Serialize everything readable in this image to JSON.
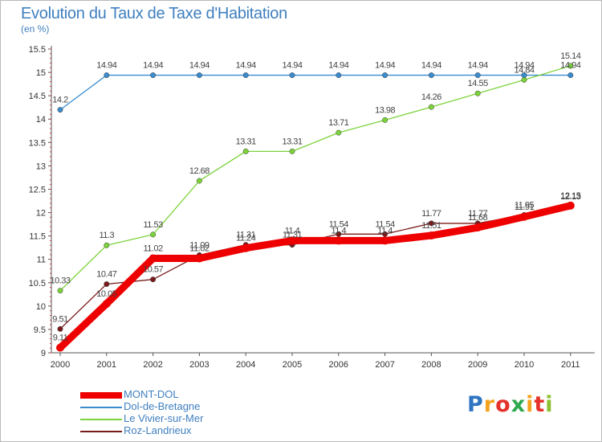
{
  "chart_data": {
    "type": "line",
    "title": "Evolution du Taux de Taxe d'Habitation",
    "subtitle": "(en %)",
    "x": [
      "2000",
      "2001",
      "2002",
      "2003",
      "2004",
      "2005",
      "2006",
      "2007",
      "2008",
      "2009",
      "2010",
      "2011"
    ],
    "ylim": [
      9,
      15.5
    ],
    "yticks": [
      "9",
      "9.5",
      "10",
      "10.5",
      "11",
      "11.5",
      "12",
      "12.5",
      "13",
      "13.5",
      "14",
      "14.5",
      "15",
      "15.5"
    ],
    "grid": false,
    "legend_position": "bottom-left",
    "series": [
      {
        "name": "MONT-DOL",
        "color": "#ee0000",
        "values": [
          9.11,
          10.05,
          11.02,
          11.02,
          11.24,
          11.4,
          11.4,
          11.4,
          11.51,
          11.68,
          11.91,
          12.15
        ],
        "labels": [
          "9.11",
          "10.05",
          "11.02",
          "11.02",
          "11.24",
          "11.4",
          "11.4",
          "11.4",
          "11.51",
          "11.68",
          "11.91",
          "12.15"
        ]
      },
      {
        "name": "Dol-de-Bretagne",
        "color": "#3a8ccf",
        "values": [
          14.2,
          14.94,
          14.94,
          14.94,
          14.94,
          14.94,
          14.94,
          14.94,
          14.94,
          14.94,
          14.94,
          14.94
        ],
        "labels": [
          "14.2",
          "14.94",
          "14.94",
          "14.94",
          "14.94",
          "14.94",
          "14.94",
          "14.94",
          "14.94",
          "14.94",
          "14.94",
          "14.94"
        ]
      },
      {
        "name": "Le Vivier-sur-Mer",
        "color": "#7cd33a",
        "values": [
          10.33,
          11.3,
          11.53,
          12.68,
          13.31,
          13.31,
          13.71,
          13.98,
          14.26,
          14.55,
          14.84,
          15.14
        ],
        "labels": [
          "10.33",
          "11.3",
          "11.53",
          "12.68",
          "13.31",
          "13.31",
          "13.71",
          "13.98",
          "14.26",
          "14.55",
          "14.84",
          "15.14"
        ]
      },
      {
        "name": "Roz-Landrieux",
        "color": "#7a1a1a",
        "values": [
          9.51,
          10.47,
          10.57,
          11.09,
          11.31,
          11.31,
          11.54,
          11.54,
          11.77,
          11.77,
          11.95,
          12.13
        ],
        "labels": [
          "9.51",
          "10.47",
          "10.57",
          "11.09",
          "11.31",
          "11.31",
          "11.54",
          "11.54",
          "11.77",
          "11.77",
          "11.95",
          "12.13"
        ]
      }
    ]
  },
  "logo": {
    "letters": [
      "P",
      "r",
      "o",
      "x",
      "i",
      "t",
      "i"
    ],
    "colors": [
      "#2f74c0",
      "#f5a21e",
      "#e4322b",
      "#2fa84f",
      "#f5a21e",
      "#e4322b",
      "#8bbf2f"
    ]
  }
}
